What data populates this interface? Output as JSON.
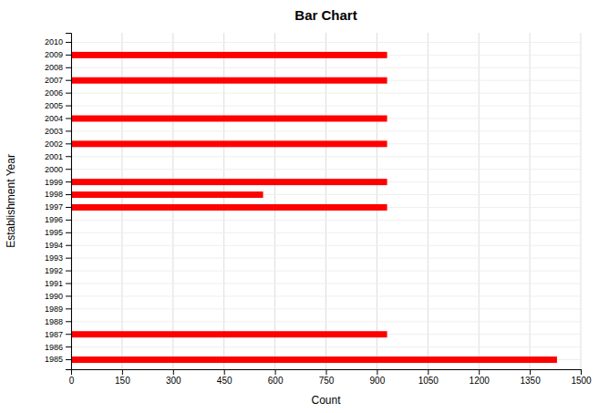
{
  "chart_data": {
    "type": "bar",
    "orientation": "horizontal",
    "title": "Bar Chart",
    "xlabel": "Count",
    "ylabel": "Establishment Year",
    "categories": [
      "1985",
      "1986",
      "1987",
      "1988",
      "1989",
      "1990",
      "1991",
      "1992",
      "1993",
      "1994",
      "1995",
      "1996",
      "1997",
      "1998",
      "1999",
      "2000",
      "2001",
      "2002",
      "2003",
      "2004",
      "2005",
      "2006",
      "2007",
      "2008",
      "2009",
      "2010"
    ],
    "values": [
      1430,
      0,
      930,
      0,
      0,
      0,
      0,
      0,
      0,
      0,
      0,
      0,
      930,
      565,
      930,
      0,
      0,
      930,
      0,
      930,
      0,
      0,
      930,
      0,
      930,
      0
    ],
    "color": "#FF0000",
    "xlim": [
      0,
      1500
    ],
    "xticks": [
      0,
      150,
      300,
      450,
      600,
      750,
      900,
      1050,
      1200,
      1350,
      1500
    ],
    "grid": true
  }
}
